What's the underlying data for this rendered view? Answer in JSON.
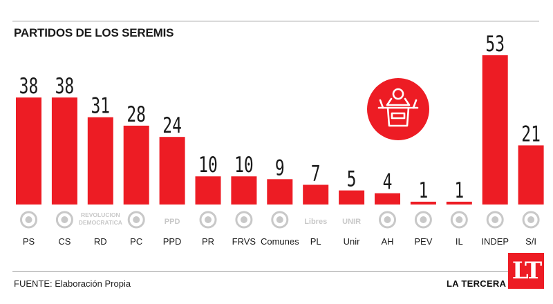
{
  "title": "PARTIDOS DE LOS SEREMIS",
  "source": "FUENTE: Elaboración Propia",
  "brand": "LA TERCERA",
  "logo_text": "LT",
  "colors": {
    "bar": "#ed1c24",
    "logo_bg": "#ed1c24",
    "rule": "#9a9a9a",
    "icon": "#c8c8c8"
  },
  "icons": [
    "speaker-podium-icon",
    "party-logo-icons"
  ],
  "chart_data": {
    "type": "bar",
    "title": "PARTIDOS DE LOS SEREMIS",
    "xlabel": "",
    "ylabel": "",
    "ylim": [
      0,
      53
    ],
    "grid": false,
    "categories": [
      "PS",
      "CS",
      "RD",
      "PC",
      "PPD",
      "PR",
      "FRVS",
      "Comunes",
      "PL",
      "Unir",
      "AH",
      "PEV",
      "IL",
      "INDEP",
      "S/I"
    ],
    "values": [
      38,
      38,
      31,
      28,
      24,
      10,
      10,
      9,
      7,
      5,
      4,
      1,
      1,
      53,
      21
    ],
    "party_logo_text": {
      "RD": "REVOLUCION DEMOCRATICA",
      "PPD": "PPD",
      "PL": "Libres",
      "Unir": "UNIR"
    }
  }
}
